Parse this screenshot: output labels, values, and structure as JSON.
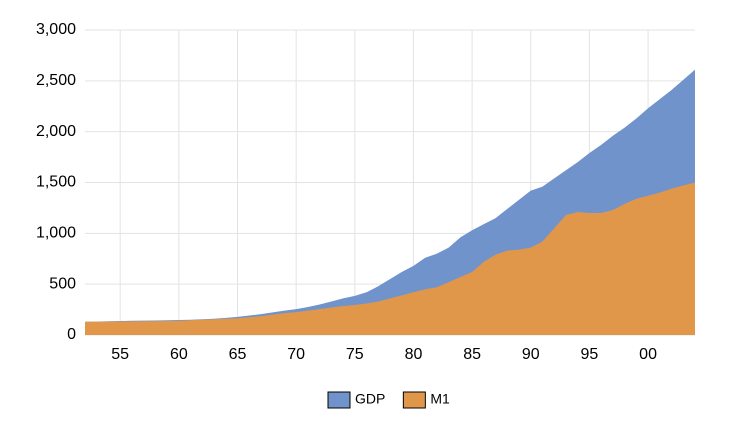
{
  "chart_data": {
    "type": "area",
    "x": [
      1952,
      1953,
      1954,
      1955,
      1956,
      1957,
      1958,
      1959,
      1960,
      1961,
      1962,
      1963,
      1964,
      1965,
      1966,
      1967,
      1968,
      1969,
      1970,
      1971,
      1972,
      1973,
      1974,
      1975,
      1976,
      1977,
      1978,
      1979,
      1980,
      1981,
      1982,
      1983,
      1984,
      1985,
      1986,
      1987,
      1988,
      1989,
      1990,
      1991,
      1992,
      1993,
      1994,
      1995,
      1996,
      1997,
      1998,
      1999,
      2000,
      2001,
      2002,
      2003,
      2004
    ],
    "series": [
      {
        "name": "GDP",
        "color": "#7093cc",
        "values": [
          130,
          132,
          135,
          138,
          140,
          142,
          143,
          145,
          147,
          150,
          155,
          160,
          168,
          178,
          192,
          205,
          222,
          240,
          255,
          275,
          300,
          330,
          360,
          385,
          420,
          480,
          550,
          620,
          680,
          760,
          800,
          860,
          960,
          1030,
          1090,
          1150,
          1240,
          1330,
          1420,
          1460,
          1540,
          1620,
          1700,
          1790,
          1870,
          1960,
          2040,
          2130,
          2230,
          2320,
          2410,
          2510,
          2610
        ]
      },
      {
        "name": "M1",
        "color": "#e0974a",
        "values": [
          130,
          131,
          132,
          133,
          134,
          135,
          136,
          138,
          140,
          145,
          150,
          155,
          160,
          165,
          175,
          185,
          200,
          215,
          225,
          240,
          255,
          270,
          285,
          295,
          310,
          330,
          360,
          390,
          420,
          450,
          470,
          520,
          570,
          620,
          720,
          790,
          830,
          840,
          860,
          920,
          1050,
          1180,
          1210,
          1200,
          1200,
          1230,
          1290,
          1340,
          1370,
          1400,
          1440,
          1470,
          1500
        ]
      }
    ],
    "xlim": [
      1952,
      2004
    ],
    "xticks": [
      {
        "value": 1955,
        "label": "55"
      },
      {
        "value": 1960,
        "label": "60"
      },
      {
        "value": 1965,
        "label": "65"
      },
      {
        "value": 1970,
        "label": "70"
      },
      {
        "value": 1975,
        "label": "75"
      },
      {
        "value": 1980,
        "label": "80"
      },
      {
        "value": 1985,
        "label": "85"
      },
      {
        "value": 1990,
        "label": "90"
      },
      {
        "value": 1995,
        "label": "95"
      },
      {
        "value": 2000,
        "label": "00"
      }
    ],
    "ylim": [
      0,
      3000
    ],
    "yticks": [
      0,
      500,
      {
        "value": 1000,
        "label": "1,000"
      },
      {
        "value": 1500,
        "label": "1,500"
      },
      {
        "value": 2000,
        "label": "2,000"
      },
      {
        "value": 2500,
        "label": "2,500"
      },
      {
        "value": 3000,
        "label": "3,000"
      }
    ],
    "grid": true,
    "legend": "bottom"
  }
}
